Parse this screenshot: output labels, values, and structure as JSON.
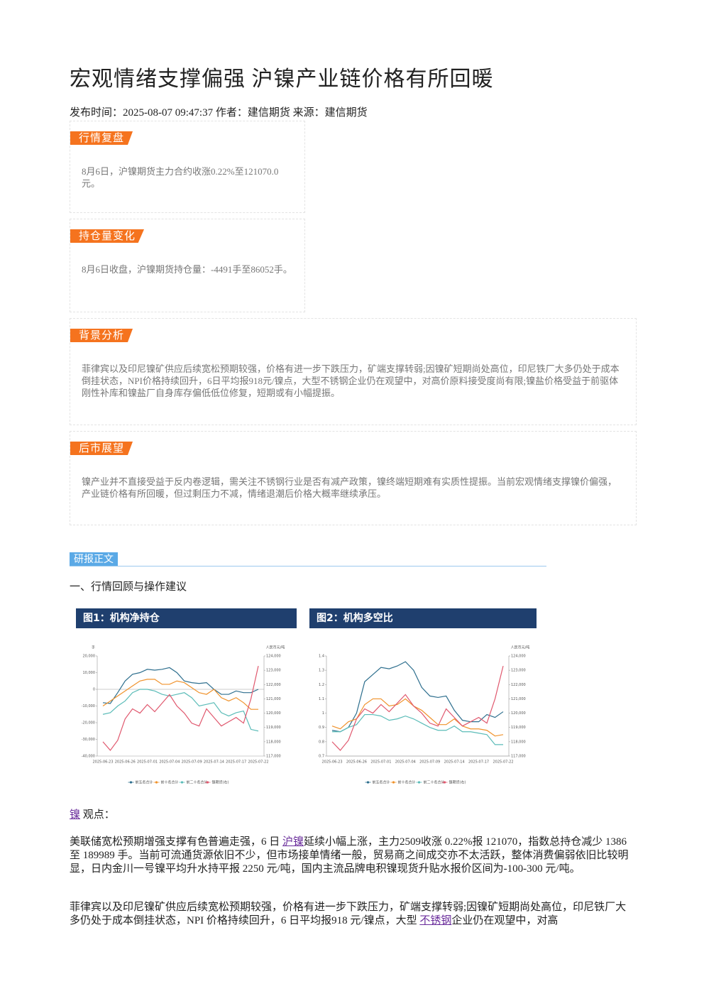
{
  "header": {
    "title": "宏观情绪支撑偏强 沪镍产业链价格有所回暖",
    "meta": "发布时间：2025-08-07 09:47:37 作者：建信期货 来源：建信期货"
  },
  "sections": [
    {
      "heading": "行情复盘",
      "body": "8月6日，沪镍期货主力合约收涨0.22%至121070.0元。"
    },
    {
      "heading": "持仓量变化",
      "body": "8月6日收盘，沪镍期货持仓量：-4491手至86052手。"
    },
    {
      "heading": "背景分析",
      "body": "菲律宾以及印尼镍矿供应后续宽松预期较强，价格有进一步下跌压力，矿端支撑转弱;因镍矿短期尚处高位，印尼铁厂大多仍处于成本倒挂状态，NPI价格持续回升，6日平均报918元/镍点，大型不锈钢企业仍在观望中，对高价原料接受度尚有限;镍盐价格受益于前驱体刚性补库和镍盐厂自身库存偏低低位修复，短期或有小幅提振。"
    },
    {
      "heading": "后市展望",
      "body": "镍产业并不直接受益于反内卷逻辑，需关注不锈钢行业是否有减产政策，镍终端短期难有实质性提振。当前宏观情绪支撑镍价偏强，产业链价格有所回暖，但过剩压力不减，情绪退潮后价格大概率继续承压。"
    }
  ],
  "report": {
    "tag": "研报正文",
    "subtitle": "一、行情回顾与操作建议",
    "view_link": "镍",
    "view_label": "观点：",
    "paragraphs": [
      [
        "美联储宽松预期增强支撑有色普遍走强，6 日 ",
        "沪镍",
        "延续小幅上涨，主力2509收涨 0.22%报 121070，指数总持仓减少 1386 至 189989 手。当前可流通货源依旧不少，但市场接单情绪一般，贸易商之间成交亦不太活跃，整体消费偏弱依旧比较明显，日内金川一号镍平均升水持平报 2250 元/吨，国内主流品牌电积镍现货升贴水报价区间为-100-300 元/吨。"
      ],
      [
        "菲律宾以及印尼镍矿供应后续宽松预期较强，价格有进一步下跌压力，矿端支撑转弱;因镍矿短期尚处高位，印尼铁厂大多仍处于成本倒挂状态，NPI 价格持续回升，6 日平均报918 元/镍点，大型 ",
        "不锈钢",
        "企业仍在观望中，对高"
      ]
    ]
  },
  "chart_data": [
    {
      "type": "line",
      "title": "图1：机构净持仓",
      "y_label": "手",
      "y2_label": "人民币元/吨",
      "categories": [
        "2025-06-23",
        null,
        null,
        "2025-06-26",
        null,
        null,
        "2025-07-01",
        null,
        null,
        "2025-07-04",
        null,
        null,
        "2025-07-09",
        null,
        null,
        "2025-07-14",
        null,
        null,
        "2025-07-17",
        null,
        null,
        "2025-07-22"
      ],
      "ylim": [
        -40000,
        20000
      ],
      "yticks": [
        {
          "value": 20000,
          "label": "20,000"
        },
        {
          "value": 10000,
          "label": "10,000"
        },
        0,
        {
          "value": -10000,
          "label": "-10,000"
        },
        {
          "value": -20000,
          "label": "-20,000"
        },
        {
          "value": -30000,
          "label": "-30,000"
        },
        {
          "value": -40000,
          "label": "-40,000"
        }
      ],
      "y2lim": [
        117000,
        124000
      ],
      "y2ticks": [
        {
          "value": 117000,
          "label": "117,000"
        },
        {
          "value": 118000,
          "label": "118,000"
        },
        {
          "value": 119000,
          "label": "119,000"
        },
        {
          "value": 120000,
          "label": "120,000"
        },
        {
          "value": 121000,
          "label": "121,000"
        },
        {
          "value": 122000,
          "label": "122,000"
        },
        {
          "value": 123000,
          "label": "123,000"
        },
        {
          "value": 124000,
          "label": "124,000"
        }
      ],
      "legend": "bottom",
      "series": [
        {
          "name": "前五名合计",
          "color": "#2e6f8e",
          "values": [
            -8000,
            -8500,
            -2000,
            5000,
            9000,
            10000,
            12000,
            11500,
            12000,
            13000,
            10000,
            5000,
            4000,
            3500,
            4000,
            0,
            -3000,
            -3000,
            -1000,
            -2000,
            -2000,
            0
          ]
        },
        {
          "name": "前十名合计",
          "color": "#f0922b",
          "values": [
            -10000,
            -7000,
            -4000,
            -1000,
            2000,
            5000,
            6000,
            6000,
            3000,
            3000,
            5000,
            4000,
            1000,
            -2000,
            -3000,
            0,
            -5000,
            -7000,
            -5000,
            -8000,
            -12000,
            -12000
          ]
        },
        {
          "name": "前二十名合计",
          "color": "#5bbcb8",
          "values": [
            -15000,
            -14000,
            -10000,
            -7000,
            -2000,
            0,
            0,
            -1000,
            -3000,
            -4000,
            -3000,
            -2000,
            -5000,
            -10000,
            -9000,
            -8000,
            -14000,
            -16000,
            -14000,
            -13000,
            -24000,
            -25000
          ]
        },
        {
          "name": "镍期货(右)",
          "color": "#e0586e",
          "axis": "y2",
          "values": [
            118000,
            117400,
            118100,
            119600,
            120300,
            120000,
            120600,
            120100,
            120700,
            121300,
            120500,
            120000,
            119300,
            119100,
            120300,
            119700,
            119100,
            119400,
            119700,
            119300,
            121000,
            123300
          ]
        }
      ]
    },
    {
      "type": "line",
      "title": "图2：机构多空比",
      "y2_label": "人民币元/吨",
      "categories": [
        "2025-06-23",
        null,
        null,
        "2025-06-26",
        null,
        null,
        "2025-07-01",
        null,
        null,
        "2025-07-04",
        null,
        null,
        "2025-07-09",
        null,
        null,
        "2025-07-14",
        null,
        null,
        "2025-07-17",
        null,
        null,
        "2025-07-22"
      ],
      "ylim": [
        0.7,
        1.4
      ],
      "yticks": [
        0.7,
        0.8,
        0.9,
        1,
        1.1,
        1.2,
        1.3,
        1.4
      ],
      "y2lim": [
        117000,
        124000
      ],
      "y2ticks": [
        {
          "value": 117000,
          "label": "117,000"
        },
        {
          "value": 118000,
          "label": "118,000"
        },
        {
          "value": 119000,
          "label": "119,000"
        },
        {
          "value": 120000,
          "label": "120,000"
        },
        {
          "value": 121000,
          "label": "121,000"
        },
        {
          "value": 122000,
          "label": "122,000"
        },
        {
          "value": 123000,
          "label": "123,000"
        },
        {
          "value": 124000,
          "label": "124,000"
        }
      ],
      "legend": "bottom",
      "series": [
        {
          "name": "前五名合计",
          "color": "#2e6f8e",
          "values": [
            0.88,
            0.87,
            0.9,
            1.0,
            1.22,
            1.27,
            1.32,
            1.31,
            1.33,
            1.36,
            1.3,
            1.18,
            1.12,
            1.11,
            1.12,
            1.02,
            0.95,
            0.94,
            0.94,
            0.99,
            0.97,
            1.01
          ]
        },
        {
          "name": "前十名合计",
          "color": "#f0922b",
          "values": [
            0.91,
            0.89,
            0.94,
            0.96,
            1.06,
            1.1,
            1.1,
            1.05,
            1.06,
            1.1,
            1.05,
            1.02,
            0.97,
            0.92,
            0.92,
            0.96,
            0.91,
            0.89,
            0.89,
            0.88,
            0.84,
            0.85
          ]
        },
        {
          "name": "前二十名合计",
          "color": "#5bbcb8",
          "values": [
            0.87,
            0.87,
            0.9,
            0.92,
            0.99,
            0.99,
            0.98,
            0.95,
            0.96,
            0.98,
            0.96,
            0.93,
            0.9,
            0.88,
            0.88,
            0.91,
            0.87,
            0.87,
            0.86,
            0.85,
            0.78,
            0.78
          ]
        },
        {
          "name": "镍期货(右)",
          "color": "#e0586e",
          "axis": "y2",
          "values": [
            118000,
            117400,
            118100,
            119600,
            120300,
            120000,
            120600,
            120100,
            120700,
            121300,
            120500,
            120000,
            119300,
            119100,
            120300,
            119700,
            119100,
            119400,
            119700,
            119300,
            121000,
            123300
          ]
        }
      ]
    }
  ]
}
